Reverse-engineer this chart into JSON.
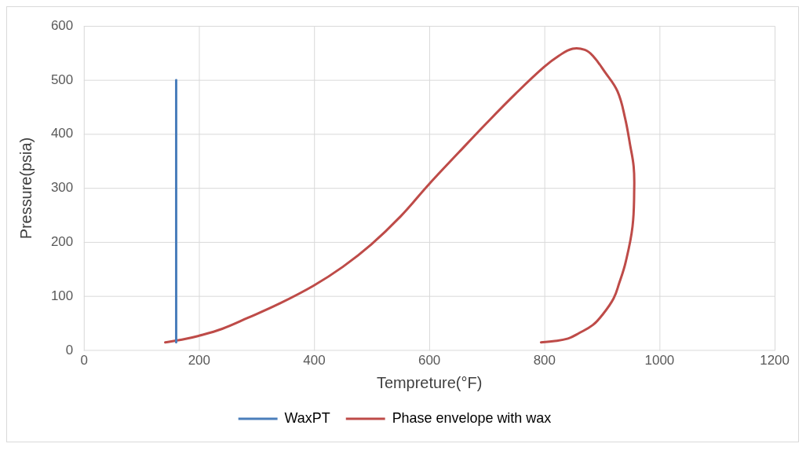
{
  "chart_data": {
    "type": "line",
    "xlabel": "Tempreture(°F)",
    "ylabel": "Pressure(psia)",
    "xlim": [
      0,
      1200
    ],
    "xticks": [
      0,
      200,
      400,
      600,
      800,
      1000,
      1200
    ],
    "ylim": [
      0,
      600
    ],
    "yticks": [
      0,
      100,
      200,
      300,
      400,
      500,
      600
    ],
    "grid": true,
    "legend": "bottom",
    "marker": "none",
    "line_style": "solid",
    "series": [
      {
        "name": "WaxPT",
        "color": "#4a7ebb",
        "x": [
          160,
          160
        ],
        "values": [
          15,
          500
        ]
      },
      {
        "name": "Phase envelope with wax",
        "color": "#be4b48",
        "x": [
          141,
          170,
          199,
          240,
          284,
          340,
          399,
          450,
          499,
          550,
          599,
          650,
          699,
          750,
          799,
          825,
          849,
          870,
          884,
          905,
          927,
          940,
          949,
          955,
          956,
          953,
          941,
          930,
          920,
          900,
          884,
          860,
          841,
          815,
          794
        ],
        "values": [
          15,
          20,
          27,
          40,
          60,
          87,
          120,
          155,
          196,
          248,
          307,
          365,
          420,
          475,
          524,
          545,
          558,
          556,
          545,
          515,
          479,
          430,
          379,
          340,
          301,
          229,
          163,
          125,
          96,
          65,
          47,
          32,
          22,
          17,
          15
        ]
      }
    ]
  }
}
